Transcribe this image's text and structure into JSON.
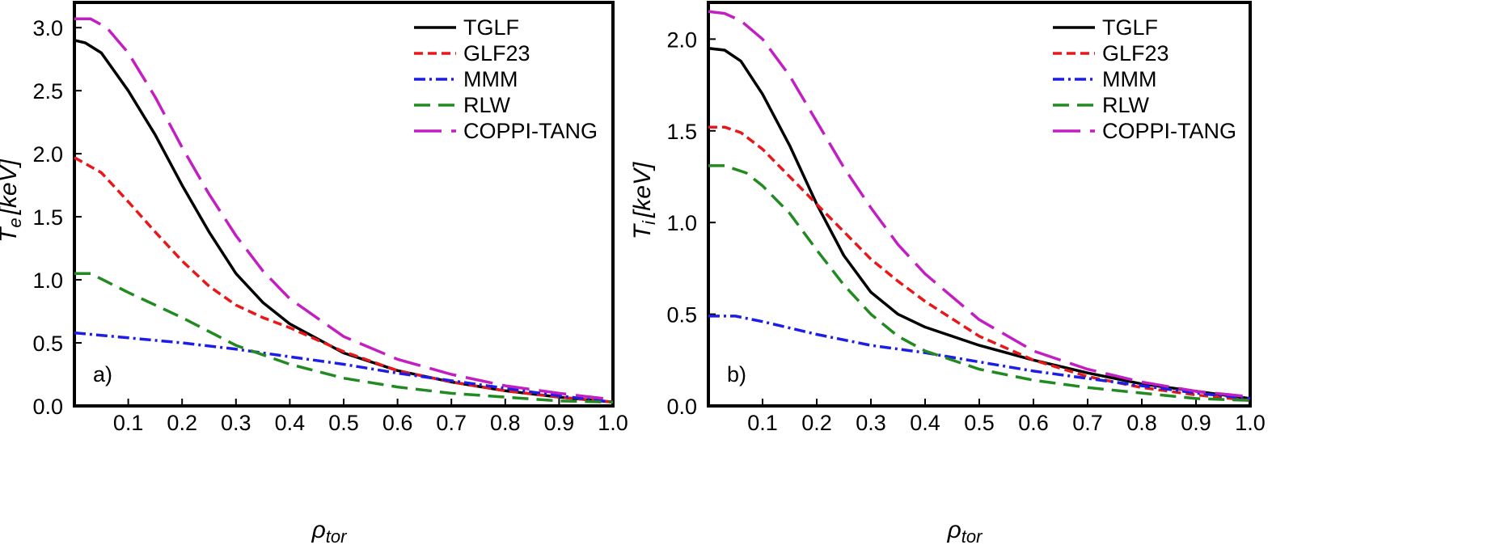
{
  "chart_data": [
    {
      "type": "line",
      "panel_label": "a)",
      "xlabel_main": "ρ",
      "xlabel_sub": "tor",
      "ylabel_main": "T",
      "ylabel_sub": "e",
      "ylabel_unit": "[keV]",
      "xlim": [
        0.0,
        1.0
      ],
      "ylim": [
        0.0,
        3.2
      ],
      "xticks": [
        0.1,
        0.2,
        0.3,
        0.4,
        0.5,
        0.6,
        0.7,
        0.8,
        0.9,
        1.0
      ],
      "xtick_labels": [
        "0.1",
        "0.2",
        "0.3",
        "0.4",
        "0.5",
        "0.6",
        "0.7",
        "0.8",
        "0.9",
        "1.0"
      ],
      "yticks": [
        0.0,
        0.5,
        1.0,
        1.5,
        2.0,
        2.5,
        3.0
      ],
      "ytick_labels": [
        "0.0",
        "0.5",
        "1.0",
        "1.5",
        "2.0",
        "2.5",
        "3.0"
      ],
      "legend_position": "top-right",
      "series": [
        {
          "name": "TGLF",
          "color": "#000000",
          "dash": "solid",
          "x": [
            0.0,
            0.02,
            0.05,
            0.1,
            0.15,
            0.2,
            0.25,
            0.3,
            0.35,
            0.4,
            0.5,
            0.6,
            0.7,
            0.8,
            0.9,
            1.0
          ],
          "y": [
            2.9,
            2.88,
            2.8,
            2.5,
            2.15,
            1.75,
            1.38,
            1.05,
            0.82,
            0.65,
            0.42,
            0.28,
            0.19,
            0.12,
            0.07,
            0.03
          ]
        },
        {
          "name": "GLF23",
          "color": "#e8171a",
          "dash": "dash",
          "x": [
            0.0,
            0.05,
            0.1,
            0.15,
            0.2,
            0.25,
            0.3,
            0.35,
            0.4,
            0.5,
            0.6,
            0.7,
            0.8,
            0.9,
            1.0
          ],
          "y": [
            1.97,
            1.85,
            1.62,
            1.38,
            1.15,
            0.95,
            0.8,
            0.7,
            0.62,
            0.43,
            0.28,
            0.19,
            0.12,
            0.07,
            0.03
          ]
        },
        {
          "name": "MMM",
          "color": "#1d1de6",
          "dash": "dashdot",
          "x": [
            0.0,
            0.1,
            0.2,
            0.3,
            0.4,
            0.5,
            0.6,
            0.7,
            0.8,
            0.9,
            1.0
          ],
          "y": [
            0.58,
            0.54,
            0.5,
            0.45,
            0.39,
            0.33,
            0.26,
            0.2,
            0.14,
            0.08,
            0.03
          ]
        },
        {
          "name": "RLW",
          "color": "#218a21",
          "dash": "longdash",
          "x": [
            0.0,
            0.03,
            0.1,
            0.2,
            0.3,
            0.4,
            0.5,
            0.6,
            0.7,
            0.8,
            0.9,
            1.0
          ],
          "y": [
            1.05,
            1.05,
            0.9,
            0.7,
            0.48,
            0.33,
            0.22,
            0.15,
            0.1,
            0.07,
            0.04,
            0.03
          ]
        },
        {
          "name": "COPPI-TANG",
          "color": "#c21ec2",
          "dash": "verylongdash",
          "x": [
            0.0,
            0.03,
            0.06,
            0.1,
            0.15,
            0.2,
            0.25,
            0.3,
            0.35,
            0.4,
            0.5,
            0.6,
            0.7,
            0.8,
            0.9,
            1.0
          ],
          "y": [
            3.07,
            3.07,
            3.0,
            2.8,
            2.45,
            2.05,
            1.68,
            1.35,
            1.07,
            0.85,
            0.55,
            0.37,
            0.25,
            0.16,
            0.1,
            0.05
          ]
        }
      ]
    },
    {
      "type": "line",
      "panel_label": "b)",
      "xlabel_main": "ρ",
      "xlabel_sub": "tor",
      "ylabel_main": "T",
      "ylabel_sub": "i",
      "ylabel_unit": "[keV]",
      "xlim": [
        0.0,
        1.0
      ],
      "ylim": [
        0.0,
        2.2
      ],
      "xticks": [
        0.1,
        0.2,
        0.3,
        0.4,
        0.5,
        0.6,
        0.7,
        0.8,
        0.9,
        1.0
      ],
      "xtick_labels": [
        "0.1",
        "0.2",
        "0.3",
        "0.4",
        "0.5",
        "0.6",
        "0.7",
        "0.8",
        "0.9",
        "1.0"
      ],
      "yticks": [
        0.0,
        0.5,
        1.0,
        1.5,
        2.0
      ],
      "ytick_labels": [
        "0.0",
        "0.5",
        "1.0",
        "1.5",
        "2.0"
      ],
      "legend_position": "top-right",
      "series": [
        {
          "name": "TGLF",
          "color": "#000000",
          "dash": "solid",
          "x": [
            0.0,
            0.03,
            0.06,
            0.1,
            0.15,
            0.2,
            0.25,
            0.3,
            0.35,
            0.4,
            0.5,
            0.6,
            0.7,
            0.8,
            0.9,
            1.0
          ],
          "y": [
            1.95,
            1.94,
            1.88,
            1.7,
            1.42,
            1.1,
            0.82,
            0.62,
            0.5,
            0.43,
            0.33,
            0.25,
            0.18,
            0.12,
            0.08,
            0.04
          ]
        },
        {
          "name": "GLF23",
          "color": "#e8171a",
          "dash": "dash",
          "x": [
            0.0,
            0.03,
            0.06,
            0.1,
            0.15,
            0.2,
            0.25,
            0.3,
            0.35,
            0.4,
            0.5,
            0.6,
            0.7,
            0.8,
            0.9,
            1.0
          ],
          "y": [
            1.52,
            1.52,
            1.49,
            1.4,
            1.25,
            1.1,
            0.95,
            0.8,
            0.68,
            0.57,
            0.38,
            0.25,
            0.16,
            0.1,
            0.06,
            0.03
          ]
        },
        {
          "name": "MMM",
          "color": "#1d1de6",
          "dash": "dashdot",
          "x": [
            0.0,
            0.05,
            0.1,
            0.2,
            0.3,
            0.4,
            0.5,
            0.6,
            0.7,
            0.8,
            0.9,
            1.0
          ],
          "y": [
            0.49,
            0.49,
            0.46,
            0.39,
            0.33,
            0.29,
            0.24,
            0.19,
            0.15,
            0.11,
            0.07,
            0.04
          ]
        },
        {
          "name": "RLW",
          "color": "#218a21",
          "dash": "longdash",
          "x": [
            0.0,
            0.03,
            0.07,
            0.1,
            0.15,
            0.2,
            0.25,
            0.3,
            0.35,
            0.4,
            0.5,
            0.6,
            0.7,
            0.8,
            0.9,
            1.0
          ],
          "y": [
            1.31,
            1.31,
            1.27,
            1.2,
            1.05,
            0.85,
            0.66,
            0.5,
            0.38,
            0.3,
            0.2,
            0.14,
            0.1,
            0.07,
            0.04,
            0.03
          ]
        },
        {
          "name": "COPPI-TANG",
          "color": "#c21ec2",
          "dash": "verylongdash",
          "x": [
            0.0,
            0.03,
            0.06,
            0.1,
            0.15,
            0.2,
            0.25,
            0.3,
            0.35,
            0.4,
            0.5,
            0.6,
            0.7,
            0.8,
            0.9,
            1.0
          ],
          "y": [
            2.15,
            2.14,
            2.1,
            2.0,
            1.8,
            1.55,
            1.3,
            1.08,
            0.88,
            0.72,
            0.47,
            0.3,
            0.2,
            0.13,
            0.08,
            0.05
          ]
        }
      ]
    }
  ]
}
